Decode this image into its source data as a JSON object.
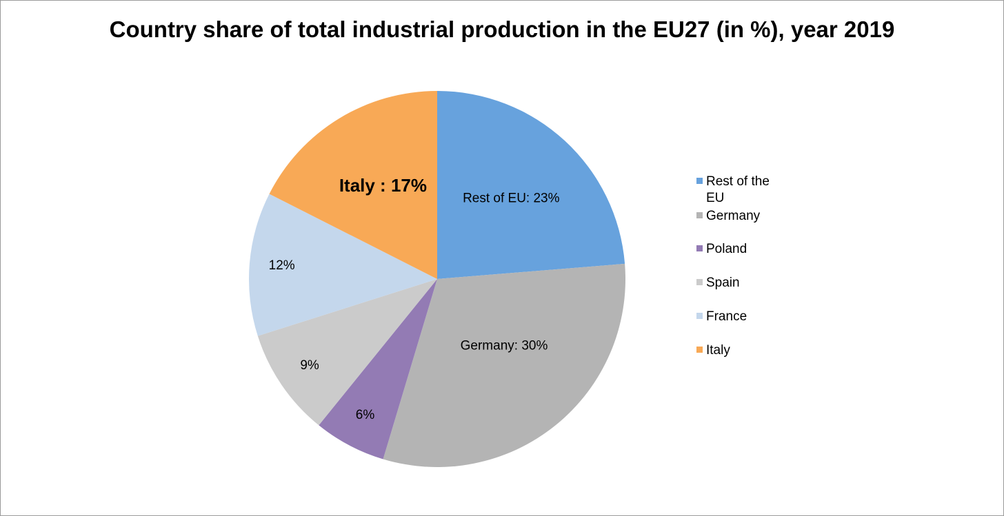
{
  "chart_data": {
    "type": "pie",
    "title": "Country share of total industrial production in the EU27 (in %), year 2019",
    "start_angle": "12 o'clock, clockwise",
    "slices": [
      {
        "name": "Rest of the EU",
        "value": 23,
        "label": "Rest of EU: 23%",
        "color": "#67a2dd",
        "label_bold": false
      },
      {
        "name": "Germany",
        "value": 30,
        "label": "Germany: 30%",
        "color": "#b4b4b4",
        "label_bold": false
      },
      {
        "name": "Poland",
        "value": 6,
        "label": "6%",
        "color": "#937bb4",
        "label_bold": false
      },
      {
        "name": "Spain",
        "value": 9,
        "label": "9%",
        "color": "#cbcbcb",
        "label_bold": false
      },
      {
        "name": "France",
        "value": 12,
        "label": "12%",
        "color": "#c4d7ec",
        "label_bold": false
      },
      {
        "name": "Italy",
        "value": 17,
        "label": "Italy : 17%",
        "color": "#f8a956",
        "label_bold": true
      }
    ],
    "legend": {
      "position": "right",
      "items": [
        "Rest of the EU",
        "Germany",
        "Poland",
        "Spain",
        "France",
        "Italy"
      ]
    }
  }
}
